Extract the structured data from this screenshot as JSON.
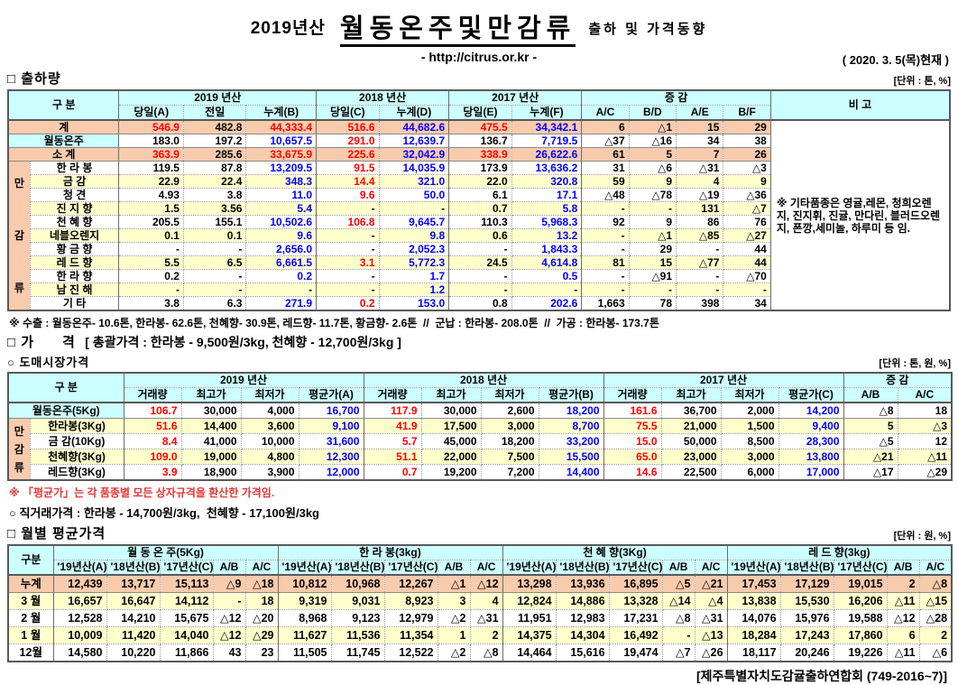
{
  "header": {
    "season": "2019년산",
    "title": "월동온주및만감류",
    "subtitle": "출하 및 가격동향",
    "url": "- http://citrus.or.kr -",
    "date": "( 2020. 3. 5(목)현재 )"
  },
  "sections": {
    "shipment": {
      "label": "□ 출하량",
      "unit": "[단위 : 톤, %]"
    },
    "price": {
      "label": "□ 가      격",
      "detail": "[ 총괄가격 : 한라봉 - 9,500원/3kg, 천혜향 - 12,700원/3kg ]"
    },
    "wholesale": {
      "label": "○ 도매시장가격",
      "unit": "[단위 : 톤, 원, %]"
    },
    "monthly": {
      "label": "□ 월별 평균가격",
      "unit": "[단위 : 원, %]"
    }
  },
  "notes": {
    "export": "※ 수출 : 월동온주- 10.6톤, 한라봉- 62.6톤, 천혜향- 30.9톤, 레드향- 11.7톤, 황금향- 2.6톤  //  군납 : 한라봉- 208.0톤  //  가공 : 한라봉- 173.7톤",
    "avg": "※ 「평균가」는 각 품종별 모든 상자규격을 환산한 가격임.",
    "direct": "○ 직거래가격 : 한라봉 - 14,700원/3kg,  천혜향 - 17,100원/3kg"
  },
  "footer": {
    "text": "[제주특별자치도감귤출하연합회 (749-2016~7)]"
  },
  "colors": {
    "header_bg": "#ccffff",
    "total_bg": "#f8cbad",
    "alt_bg": "#ffffcc",
    "value_red": "#ff0000",
    "value_blue": "#0000ff"
  },
  "shipment_table": {
    "gubun": "구      분",
    "year_groups": [
      "2019 년산",
      "2018 년산",
      "2017 년산",
      "증      감"
    ],
    "remark_header": "비 고",
    "sub_headers": [
      "당일(A)",
      "전일",
      "누계(B)",
      "당일(C)",
      "누계(D)",
      "당일(E)",
      "누계(F)",
      "A/C",
      "B/D",
      "A/E",
      "B/F"
    ],
    "group_label": "만감류",
    "remark": "※ 기타품종은 영귤,레몬, 청희오렌지, 진지휘, 진귤, 만다린, 블러드오렌지, 폰깡,세미놀, 하루미 등 임.",
    "rows": [
      {
        "label": "계",
        "type": "total",
        "cells": [
          "546.9|r",
          "482.8",
          "44,333.4|r",
          "516.6|r",
          "44,682.6|b",
          "475.5|r",
          "34,342.1|b",
          "6",
          "△1",
          "15",
          "29"
        ]
      },
      {
        "label": "월동온주",
        "type": "winter",
        "cells": [
          "183.0",
          "197.2",
          "10,657.5|b",
          "291.0|r",
          "12,639.7|b",
          "136.7",
          "7,719.5|b",
          "△37",
          "△16",
          "34",
          "38"
        ]
      },
      {
        "label": "소    계",
        "type": "subtotal",
        "cells": [
          "363.9|r",
          "285.6",
          "33,675.9|r",
          "225.6|r",
          "32,042.9|b",
          "338.9|r",
          "26,622.6|b",
          "61",
          "5",
          "7",
          "26"
        ]
      },
      {
        "label": "한 라 봉",
        "type": "item",
        "cells": [
          "119.5",
          "87.8",
          "13,209.5|b",
          "91.5|r",
          "14,035.9|b",
          "173.9",
          "13,636.2|b",
          "31",
          "△6",
          "△31",
          "△3"
        ]
      },
      {
        "label": "금    감",
        "type": "item",
        "cells": [
          "22.9",
          "22.4",
          "348.3|b",
          "14.4|r",
          "321.0|b",
          "22.0",
          "320.8|b",
          "59",
          "9",
          "4",
          "9"
        ]
      },
      {
        "label": "청    견",
        "type": "item",
        "cells": [
          "4.93",
          "3.8",
          "11.0|b",
          "9.6|r",
          "50.0|b",
          "6.1",
          "17.1|b",
          "△48",
          "△78",
          "△19",
          "△36"
        ]
      },
      {
        "label": "진 지 향",
        "type": "item",
        "cells": [
          "1.5",
          "3.56",
          "5.4|b",
          "-",
          "-",
          "0.7",
          "5.8|b",
          "-",
          "-",
          "131",
          "△7"
        ]
      },
      {
        "label": "천 혜 향",
        "type": "item",
        "cells": [
          "205.5",
          "155.1",
          "10,502.6|b",
          "106.8|r",
          "9,645.7|b",
          "110.3",
          "5,968.3|b",
          "92",
          "9",
          "86",
          "76"
        ]
      },
      {
        "label": "네블오렌지",
        "type": "item",
        "cells": [
          "0.1",
          "0.1",
          "9.6|b",
          "-",
          "9.8|b",
          "0.6",
          "13.2|b",
          "-",
          "△1",
          "△85",
          "△27"
        ]
      },
      {
        "label": "황 금 향",
        "type": "item",
        "cells": [
          "-",
          "-",
          "2,656.0|b",
          "-",
          "2,052.3|b",
          "-",
          "1,843.3|b",
          "-",
          "29",
          "-",
          "44"
        ]
      },
      {
        "label": "레 드 향",
        "type": "item",
        "cells": [
          "5.5",
          "6.5",
          "6,661.5|b",
          "3.1|r",
          "5,772.3|b",
          "24.5",
          "4,614.8|b",
          "81",
          "15",
          "△77",
          "44"
        ]
      },
      {
        "label": "한 라 향",
        "type": "item",
        "cells": [
          "0.2",
          "-",
          "0.2|b",
          "-",
          "1.7|b",
          "-",
          "0.5|b",
          "-",
          "△91",
          "-",
          "△70"
        ]
      },
      {
        "label": "남 진 해",
        "type": "item",
        "cells": [
          "-",
          "-",
          "-",
          "-",
          "1.2|b",
          "-",
          "-",
          "-",
          "-",
          "-",
          "-"
        ]
      },
      {
        "label": "기    타",
        "type": "item",
        "cells": [
          "3.8",
          "6.3",
          "271.9|b",
          "0.2|r",
          "153.0|b",
          "0.8",
          "202.6|b",
          "1,663",
          "78",
          "398",
          "34"
        ]
      }
    ]
  },
  "wholesale_table": {
    "gubun": "구      분",
    "year_groups": [
      "2019 년산",
      "2018 년산",
      "2017 년산",
      "증  감"
    ],
    "sub_headers": [
      "거래량",
      "최고가",
      "최저가",
      "평균가(A)",
      "거래량",
      "최고가",
      "최저가",
      "평균가(B)",
      "거래량",
      "최고가",
      "최저가",
      "평균가(C)",
      "A/B",
      "A/C"
    ],
    "group_label": "만감류",
    "rows": [
      {
        "label": "월동온주(5Kg)",
        "type": "winter",
        "cells": [
          "106.7|r",
          "30,000",
          "4,000",
          "16,700|b",
          "117.9|r",
          "30,000",
          "2,600",
          "18,200|b",
          "161.6|r",
          "36,700",
          "2,000",
          "14,200|b",
          "△8",
          "18"
        ]
      },
      {
        "label": "한라봉(3Kg)",
        "type": "item",
        "cells": [
          "51.6|r",
          "14,400",
          "3,600",
          "9,100|b",
          "41.9|r",
          "17,500",
          "3,000",
          "8,700|b",
          "75.5|r",
          "21,000",
          "1,500",
          "9,400|b",
          "5",
          "△3"
        ]
      },
      {
        "label": "금  감(10Kg)",
        "type": "item",
        "cells": [
          "8.4|r",
          "41,000",
          "10,000",
          "31,600|b",
          "5.7|r",
          "45,000",
          "18,200",
          "33,200|b",
          "15.0|r",
          "50,000",
          "8,500",
          "28,300|b",
          "△5",
          "12"
        ]
      },
      {
        "label": "천혜향(3Kg)",
        "type": "item",
        "cells": [
          "109.0|r",
          "19,000",
          "4,800",
          "12,300|b",
          "51.1|r",
          "22,000",
          "7,500",
          "15,500|b",
          "65.0|r",
          "23,000",
          "3,000",
          "13,800|b",
          "△21",
          "△11"
        ]
      },
      {
        "label": "레드향(3Kg)",
        "type": "item",
        "cells": [
          "3.9|r",
          "18,900",
          "3,900",
          "12,000|b",
          "0.7|r",
          "19,200",
          "7,200",
          "14,400|b",
          "14.6|r",
          "22,500",
          "6,000",
          "17,000|b",
          "△17",
          "△29"
        ]
      }
    ]
  },
  "monthly_table": {
    "gubun": "구분",
    "groups": [
      "월 동 온 주(5Kg)",
      "한  라  봉(3kg)",
      "천 혜 향(3Kg)",
      "레 드 향(3kg)"
    ],
    "sub_headers": [
      "'19년산(A)",
      "'18년산(B)",
      "'17년산(C)",
      "A/B",
      "A/C"
    ],
    "rows": [
      {
        "label": "누계",
        "type": "total",
        "cells": [
          "12,439",
          "13,717",
          "15,113",
          "△9",
          "△18",
          "10,812",
          "10,968",
          "12,267",
          "△1",
          "△12",
          "13,298",
          "13,936",
          "16,895",
          "△5",
          "△21",
          "17,453",
          "17,129",
          "19,015",
          "2",
          "△8"
        ]
      },
      {
        "label": "3 월",
        "type": "odd",
        "cells": [
          "16,657",
          "16,647",
          "14,112",
          "-",
          "18",
          "9,319",
          "9,031",
          "8,923",
          "3",
          "4",
          "12,824",
          "14,886",
          "13,328",
          "△14",
          "△4",
          "13,838",
          "15,530",
          "16,206",
          "△11",
          "△15"
        ]
      },
      {
        "label": "2 월",
        "type": "even",
        "cells": [
          "12,528",
          "14,210",
          "15,675",
          "△12",
          "△20",
          "8,968",
          "9,123",
          "12,979",
          "△2",
          "△31",
          "11,951",
          "12,983",
          "17,231",
          "△8",
          "△31",
          "14,076",
          "15,976",
          "19,588",
          "△12",
          "△28"
        ]
      },
      {
        "label": "1 월",
        "type": "odd",
        "cells": [
          "10,009",
          "11,420",
          "14,040",
          "△12",
          "△29",
          "11,627",
          "11,536",
          "11,354",
          "1",
          "2",
          "14,375",
          "14,304",
          "16,492",
          "-",
          "△13",
          "18,284",
          "17,243",
          "17,860",
          "6",
          "2"
        ]
      },
      {
        "label": "12월",
        "type": "even",
        "cells": [
          "14,580",
          "10,220",
          "11,866",
          "43",
          "23",
          "11,505",
          "11,745",
          "12,522",
          "△2",
          "△8",
          "14,464",
          "15,616",
          "19,474",
          "△7",
          "△26",
          "18,117",
          "20,246",
          "19,226",
          "△11",
          "△6"
        ]
      }
    ]
  }
}
